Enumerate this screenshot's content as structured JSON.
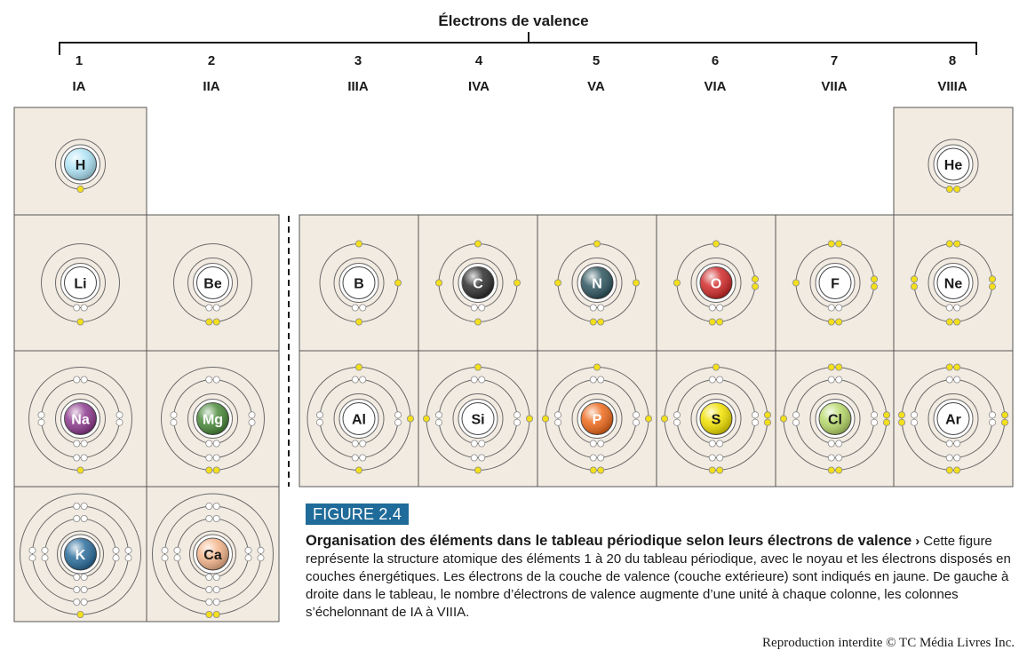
{
  "title": "Électrons de valence",
  "groups": [
    {
      "number": "1",
      "label": "IA"
    },
    {
      "number": "2",
      "label": "IIA"
    },
    {
      "number": "3",
      "label": "IIIA"
    },
    {
      "number": "4",
      "label": "IVA"
    },
    {
      "number": "5",
      "label": "VA"
    },
    {
      "number": "6",
      "label": "VIA"
    },
    {
      "number": "7",
      "label": "VIIA"
    },
    {
      "number": "8",
      "label": "VIIIA"
    }
  ],
  "elements": [
    {
      "symbol": "H",
      "group": 1,
      "period": 1,
      "shells": [
        1
      ],
      "color": "#aee3f5",
      "light": true
    },
    {
      "symbol": "He",
      "group": 8,
      "period": 1,
      "shells": [
        2
      ],
      "color": "#ffffff",
      "light": true
    },
    {
      "symbol": "Li",
      "group": 1,
      "period": 2,
      "shells": [
        2,
        1
      ],
      "color": "#ffffff",
      "light": true
    },
    {
      "symbol": "Be",
      "group": 2,
      "period": 2,
      "shells": [
        2,
        2
      ],
      "color": "#ffffff",
      "light": true
    },
    {
      "symbol": "B",
      "group": 3,
      "period": 2,
      "shells": [
        2,
        3
      ],
      "color": "#ffffff",
      "light": true
    },
    {
      "symbol": "C",
      "group": 4,
      "period": 2,
      "shells": [
        2,
        4
      ],
      "color": "#2e2e2e",
      "light": false
    },
    {
      "symbol": "N",
      "group": 5,
      "period": 2,
      "shells": [
        2,
        5
      ],
      "color": "#2f5660",
      "light": false
    },
    {
      "symbol": "O",
      "group": 6,
      "period": 2,
      "shells": [
        2,
        6
      ],
      "color": "#d12a2a",
      "light": false
    },
    {
      "symbol": "F",
      "group": 7,
      "period": 2,
      "shells": [
        2,
        7
      ],
      "color": "#ffffff",
      "light": true
    },
    {
      "symbol": "Ne",
      "group": 8,
      "period": 2,
      "shells": [
        2,
        8
      ],
      "color": "#ffffff",
      "light": true
    },
    {
      "symbol": "Na",
      "group": 1,
      "period": 3,
      "shells": [
        2,
        8,
        1
      ],
      "color": "#8e3b8f",
      "light": false
    },
    {
      "symbol": "Mg",
      "group": 2,
      "period": 3,
      "shells": [
        2,
        8,
        2
      ],
      "color": "#4a8a3a",
      "light": false
    },
    {
      "symbol": "Al",
      "group": 3,
      "period": 3,
      "shells": [
        2,
        8,
        3
      ],
      "color": "#ffffff",
      "light": true
    },
    {
      "symbol": "Si",
      "group": 4,
      "period": 3,
      "shells": [
        2,
        8,
        4
      ],
      "color": "#ffffff",
      "light": true
    },
    {
      "symbol": "P",
      "group": 5,
      "period": 3,
      "shells": [
        2,
        8,
        5
      ],
      "color": "#ee6a1c",
      "light": false
    },
    {
      "symbol": "S",
      "group": 6,
      "period": 3,
      "shells": [
        2,
        8,
        6
      ],
      "color": "#f1e100",
      "light": true
    },
    {
      "symbol": "Cl",
      "group": 7,
      "period": 3,
      "shells": [
        2,
        8,
        7
      ],
      "color": "#b7d96a",
      "light": true
    },
    {
      "symbol": "Ar",
      "group": 8,
      "period": 3,
      "shells": [
        2,
        8,
        8
      ],
      "color": "#ffffff",
      "light": true
    },
    {
      "symbol": "K",
      "group": 1,
      "period": 4,
      "shells": [
        2,
        8,
        8,
        1
      ],
      "color": "#2b6d9c",
      "light": false
    },
    {
      "symbol": "Ca",
      "group": 2,
      "period": 4,
      "shells": [
        2,
        8,
        8,
        2
      ],
      "color": "#f4b58c",
      "light": true
    }
  ],
  "colors": {
    "cell_bg": "#f2ebe1",
    "cell_border": "#555555",
    "valence_electron": "#f3df1c",
    "inner_electron": "#ffffff",
    "figure_badge": "#1f6b9a"
  },
  "figure": {
    "badge": "FIGURE 2.4",
    "heading": "Organisation des éléments dans le tableau périodique selon leurs électrons de valence",
    "arrow": "›",
    "text": "Cette figure représente la structure atomique des éléments 1 à 20 du tableau périodique, avec le noyau et les électrons disposés en couches énergétiques. Les électrons de la couche de valence (couche extérieure) sont indiqués en jaune. De gauche à droite dans le tableau, le nombre d’électrons de valence augmente d’une unité à chaque colonne, les colonnes s’échelonnant de IA à VIIIA."
  },
  "footer": "Reproduction interdite © TC Média Livres Inc."
}
